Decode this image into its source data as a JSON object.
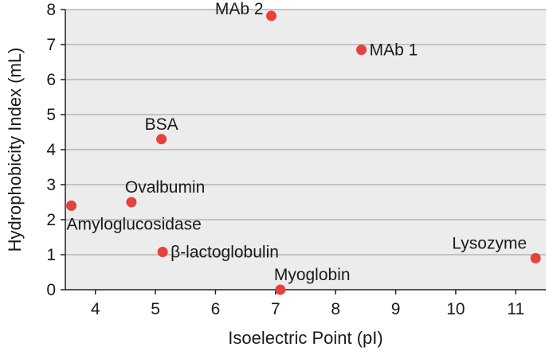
{
  "chart_data": {
    "type": "scatter",
    "title": "",
    "xlabel": "Isoelectric Point (pI)",
    "ylabel": "Hydrophobicity Index (mL)",
    "xlim": [
      3.5,
      11.5
    ],
    "ylim": [
      0,
      8
    ],
    "xticks": [
      4,
      5,
      6,
      7,
      8,
      9,
      10,
      11
    ],
    "yticks": [
      0,
      1,
      2,
      3,
      4,
      5,
      6,
      7,
      8
    ],
    "grid": "horizontal",
    "legend": "none",
    "colors": {
      "point": "#e8403a",
      "plot_background": "#ececec",
      "grid": "#9a9a9a"
    },
    "points": [
      {
        "label": "MAb 2",
        "x": 6.93,
        "y": 7.82,
        "label_pos": "left"
      },
      {
        "label": "MAb 1",
        "x": 8.43,
        "y": 6.85,
        "label_pos": "right"
      },
      {
        "label": "BSA",
        "x": 5.1,
        "y": 4.3,
        "label_pos": "above"
      },
      {
        "label": "Ovalbumin",
        "x": 4.6,
        "y": 2.5,
        "label_pos": "above-right"
      },
      {
        "label": "Amyloglucosidase",
        "x": 3.6,
        "y": 2.4,
        "label_pos": "below-right"
      },
      {
        "label": "β-lactoglobulin",
        "x": 5.12,
        "y": 1.08,
        "label_pos": "right"
      },
      {
        "label": "Lysozyme",
        "x": 11.33,
        "y": 0.9,
        "label_pos": "above-left"
      },
      {
        "label": "Myoglobin",
        "x": 7.08,
        "y": 0.0,
        "label_pos": "above-right"
      }
    ]
  }
}
